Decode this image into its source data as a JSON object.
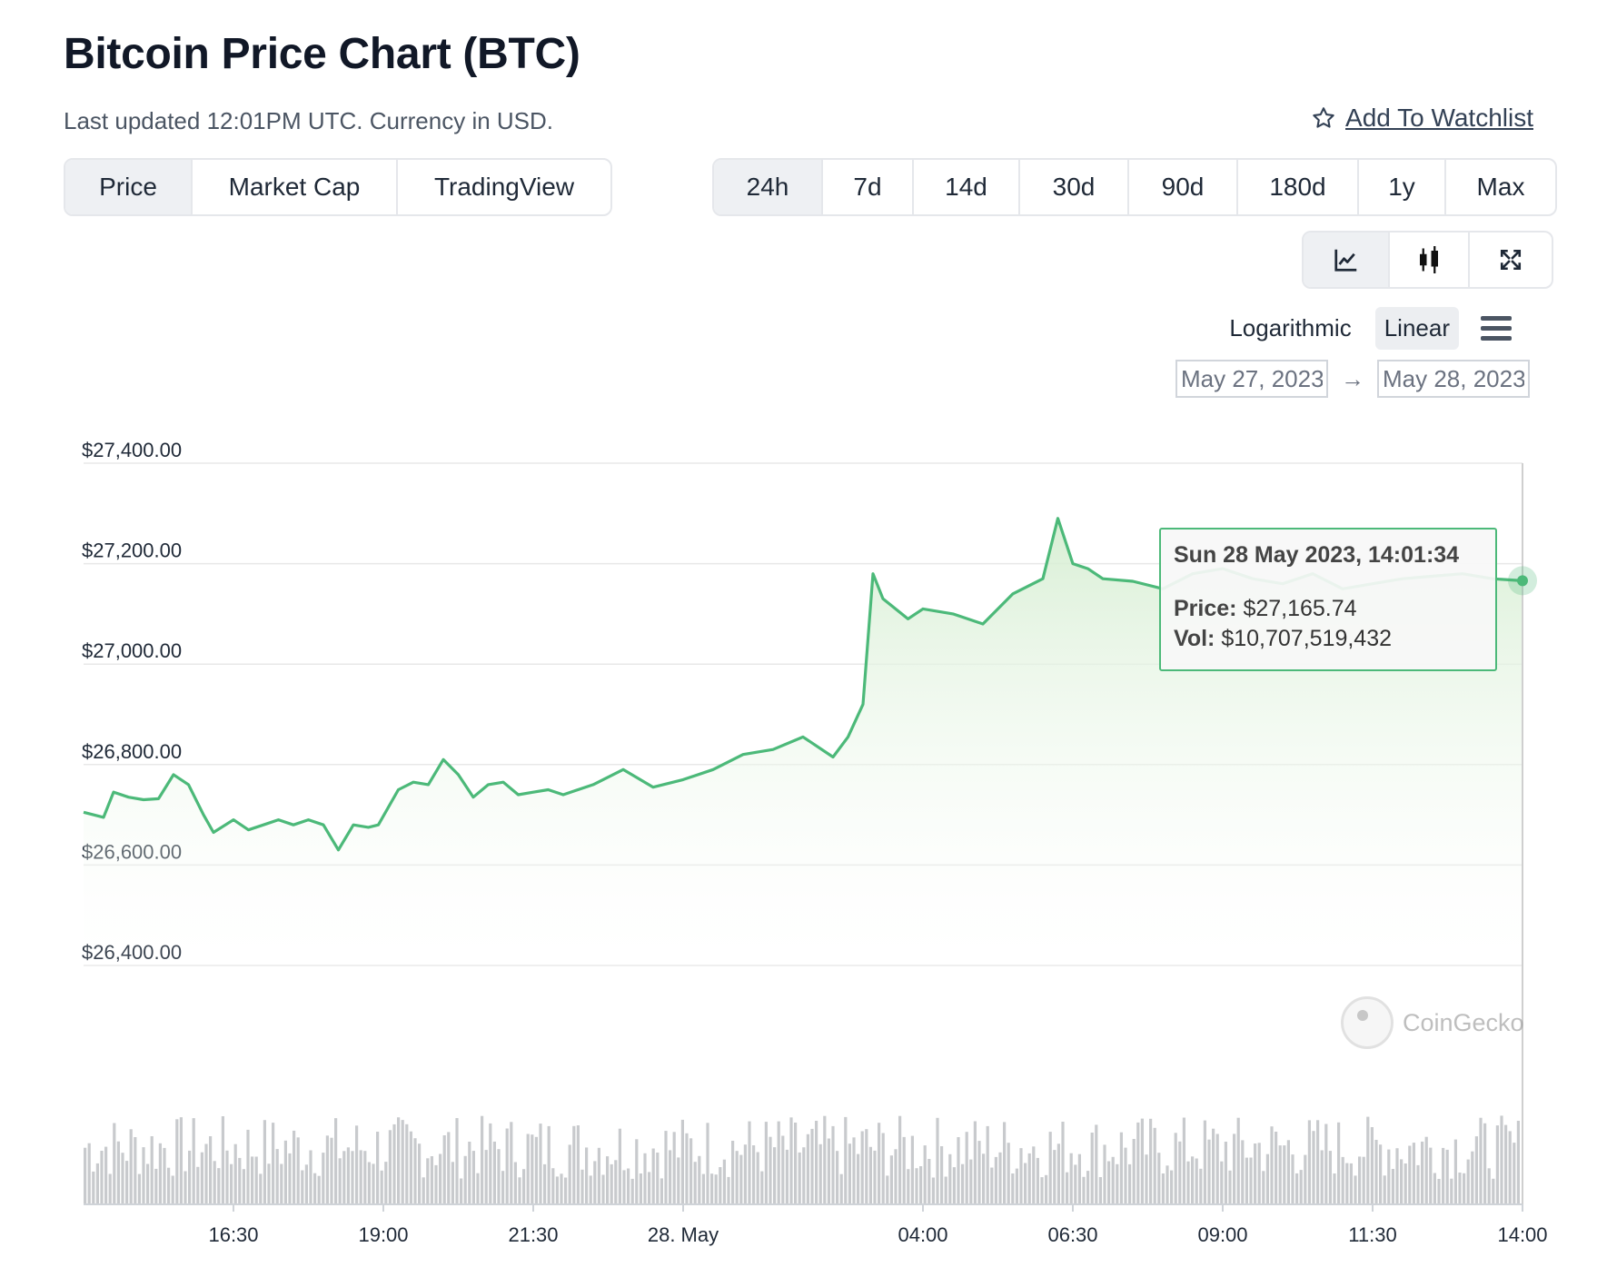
{
  "header": {
    "title": "Bitcoin Price Chart (BTC)",
    "subtitle": "Last updated 12:01PM UTC. Currency in USD.",
    "watchlist_label": "Add To Watchlist"
  },
  "tabs": [
    {
      "label": "Price",
      "active": true
    },
    {
      "label": "Market Cap",
      "active": false
    },
    {
      "label": "TradingView",
      "active": false
    }
  ],
  "ranges": [
    {
      "label": "24h",
      "active": true
    },
    {
      "label": "7d",
      "active": false
    },
    {
      "label": "14d",
      "active": false
    },
    {
      "label": "30d",
      "active": false
    },
    {
      "label": "90d",
      "active": false
    },
    {
      "label": "180d",
      "active": false
    },
    {
      "label": "1y",
      "active": false
    },
    {
      "label": "Max",
      "active": false
    }
  ],
  "chart_types": [
    {
      "icon": "line-chart-icon",
      "active": true
    },
    {
      "icon": "candlestick-icon",
      "active": false
    },
    {
      "icon": "expand-icon",
      "active": false
    }
  ],
  "scale": {
    "options": [
      "Logarithmic",
      "Linear"
    ],
    "active": "Linear"
  },
  "date_range": {
    "from": "May 27, 2023",
    "arrow": "→",
    "to": "May 28, 2023"
  },
  "tooltip": {
    "date": "Sun 28 May 2023, 14:01:34",
    "price_label": "Price:",
    "price_value": "$27,165.74",
    "vol_label": "Vol:",
    "vol_value": "$10,707,519,432"
  },
  "watermark": "CoinGecko",
  "colors": {
    "line": "#4cb979",
    "fill_top": "#d9f0d6",
    "volume": "#c8cacd",
    "grid": "#e8e8e8"
  },
  "chart_data": {
    "type": "area",
    "title": "",
    "xlabel": "",
    "ylabel": "",
    "ylim": [
      26400,
      27400
    ],
    "y_ticks": [
      "$27,400.00",
      "$27,200.00",
      "$27,000.00",
      "$26,800.00",
      "$26,600.00",
      "$26,400.00"
    ],
    "y_tick_values": [
      27400,
      27200,
      27000,
      26800,
      26600,
      26400
    ],
    "x_range": [
      "2023-05-27T14:00",
      "2023-05-28T14:00"
    ],
    "x_ticks": [
      "16:30",
      "19:00",
      "21:30",
      "28. May",
      "04:00",
      "06:30",
      "09:00",
      "11:30",
      "14:00"
    ],
    "x_tick_times": [
      "2023-05-27T16:30",
      "2023-05-27T19:00",
      "2023-05-27T21:30",
      "2023-05-28T00:00",
      "2023-05-28T04:00",
      "2023-05-28T06:30",
      "2023-05-28T09:00",
      "2023-05-28T11:30",
      "2023-05-28T14:00"
    ],
    "grid": true,
    "legend": "none",
    "series": [
      {
        "x": [
          "2023-05-27T14:00",
          "2023-05-27T14:20",
          "2023-05-27T14:30",
          "2023-05-27T14:45",
          "2023-05-27T15:00",
          "2023-05-27T15:15",
          "2023-05-27T15:30",
          "2023-05-27T15:45",
          "2023-05-27T16:00",
          "2023-05-27T16:10",
          "2023-05-27T16:30",
          "2023-05-27T16:45",
          "2023-05-27T17:00",
          "2023-05-27T17:15",
          "2023-05-27T17:30",
          "2023-05-27T17:45",
          "2023-05-27T18:00",
          "2023-05-27T18:15",
          "2023-05-27T18:30",
          "2023-05-27T18:45",
          "2023-05-27T18:55",
          "2023-05-27T19:15",
          "2023-05-27T19:30",
          "2023-05-27T19:45",
          "2023-05-27T20:00",
          "2023-05-27T20:15",
          "2023-05-27T20:30",
          "2023-05-27T20:45",
          "2023-05-27T21:00",
          "2023-05-27T21:15",
          "2023-05-27T21:30",
          "2023-05-27T21:45",
          "2023-05-27T22:00",
          "2023-05-27T22:30",
          "2023-05-27T23:00",
          "2023-05-27T23:30",
          "2023-05-28T00:00",
          "2023-05-28T00:30",
          "2023-05-28T01:00",
          "2023-05-28T01:30",
          "2023-05-28T02:00",
          "2023-05-28T02:30",
          "2023-05-28T02:45",
          "2023-05-28T03:00",
          "2023-05-28T03:10",
          "2023-05-28T03:20",
          "2023-05-28T03:45",
          "2023-05-28T04:00",
          "2023-05-28T04:30",
          "2023-05-28T05:00",
          "2023-05-28T05:30",
          "2023-05-28T06:00",
          "2023-05-28T06:15",
          "2023-05-28T06:30",
          "2023-05-28T06:45",
          "2023-05-28T07:00",
          "2023-05-28T07:30",
          "2023-05-28T08:00",
          "2023-05-28T08:30",
          "2023-05-28T09:00",
          "2023-05-28T09:30",
          "2023-05-28T10:00",
          "2023-05-28T10:30",
          "2023-05-28T11:00",
          "2023-05-28T11:30",
          "2023-05-28T12:00",
          "2023-05-28T12:30",
          "2023-05-28T13:00",
          "2023-05-28T13:30",
          "2023-05-28T14:00"
        ],
        "y": [
          26705,
          26695,
          26745,
          26735,
          26730,
          26732,
          26780,
          26760,
          26700,
          26665,
          26690,
          26670,
          26680,
          26690,
          26680,
          26690,
          26680,
          26630,
          26680,
          26675,
          26680,
          26750,
          26765,
          26760,
          26810,
          26780,
          26735,
          26760,
          26765,
          26740,
          26745,
          26750,
          26740,
          26760,
          26790,
          26755,
          26770,
          26790,
          26820,
          26830,
          26855,
          26815,
          26855,
          26920,
          27180,
          27130,
          27090,
          27110,
          27100,
          27080,
          27140,
          27170,
          27290,
          27200,
          27190,
          27170,
          27165,
          27150,
          27180,
          27190,
          27170,
          27160,
          27180,
          27150,
          27160,
          27170,
          27175,
          27180,
          27170,
          27166
        ]
      }
    ],
    "volume_note": "relative volume bars shown beneath price area"
  }
}
